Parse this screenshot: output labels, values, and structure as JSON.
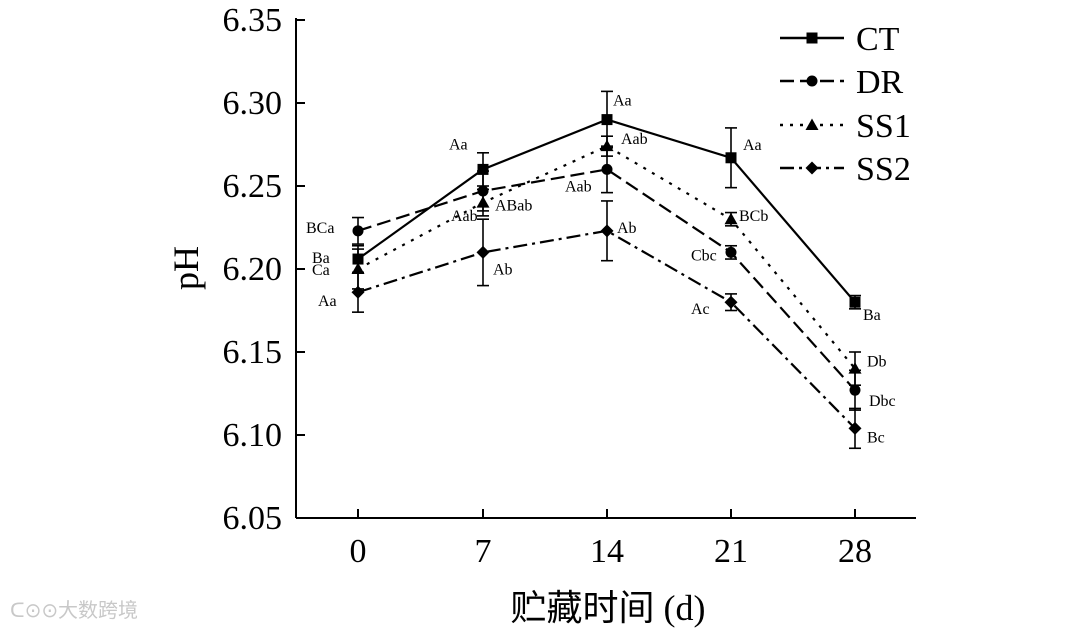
{
  "chart_data": {
    "type": "line",
    "title": "",
    "xlabel": "贮藏时间 (d)",
    "ylabel": "pH",
    "x": [
      0,
      7,
      14,
      21,
      28
    ],
    "x_tick_labels": [
      "0",
      "7",
      "14",
      "21",
      "28"
    ],
    "ylim": [
      6.05,
      6.35
    ],
    "y_ticks": [
      6.05,
      6.1,
      6.15,
      6.2,
      6.25,
      6.3,
      6.35
    ],
    "y_tick_labels": [
      "6.05",
      "6.10",
      "6.15",
      "6.20",
      "6.25",
      "6.30",
      "6.35"
    ],
    "grid": false,
    "legend_position": "top-right",
    "series": [
      {
        "name": "CT",
        "marker": "square",
        "dash": "solid",
        "values": [
          6.206,
          6.26,
          6.29,
          6.267,
          6.18
        ],
        "errors": [
          0.008,
          0.01,
          0.017,
          0.018,
          0.004
        ],
        "labels": [
          "Ba",
          "Aa",
          "Aa",
          "Aa",
          "Ba"
        ]
      },
      {
        "name": "DR",
        "marker": "circle",
        "dash": "dashed",
        "values": [
          6.223,
          6.247,
          6.26,
          6.21,
          6.127
        ],
        "errors": [
          0.008,
          0.012,
          0.014,
          0.004,
          0.012
        ],
        "labels": [
          "BCa",
          "Aab",
          "Aab",
          "Cbc",
          "Dbc"
        ]
      },
      {
        "name": "SS1",
        "marker": "triangle",
        "dash": "dotted",
        "values": [
          6.2,
          6.24,
          6.274,
          6.23,
          6.14
        ],
        "errors": [
          0.012,
          0.008,
          0.006,
          0.004,
          0.01
        ],
        "labels": [
          "Ca",
          "ABab",
          "Aab",
          "BCb",
          "Db"
        ]
      },
      {
        "name": "SS2",
        "marker": "diamond",
        "dash": "dash-dot",
        "values": [
          6.186,
          6.21,
          6.223,
          6.18,
          6.104
        ],
        "errors": [
          0.012,
          0.02,
          0.018,
          0.005,
          0.012
        ],
        "labels": [
          "Aa",
          "Ab",
          "Ab",
          "Ac",
          "Bc"
        ]
      }
    ]
  },
  "watermark": {
    "text": "大数跨境"
  }
}
